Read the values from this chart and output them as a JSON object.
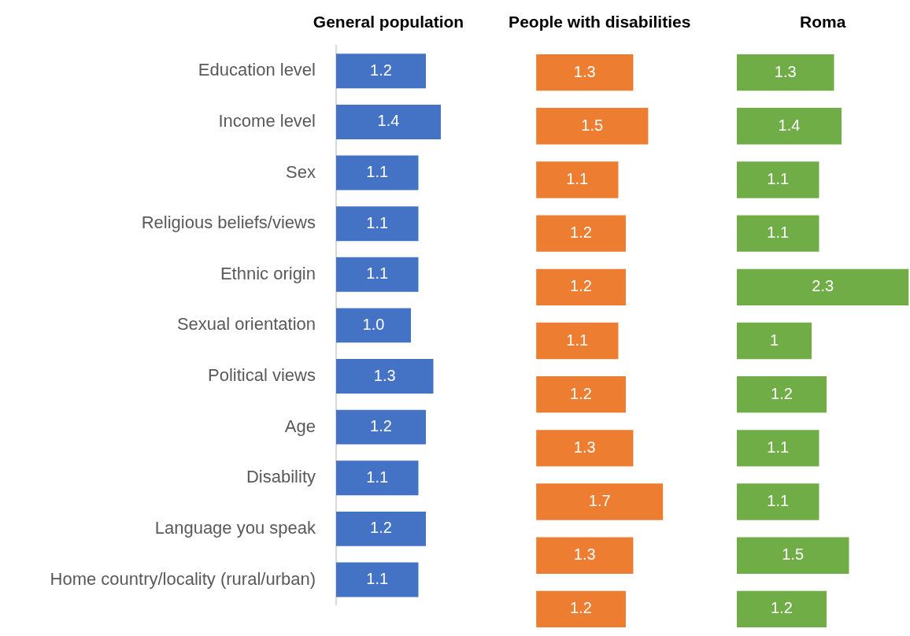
{
  "chart_data": [
    {
      "type": "bar",
      "orientation": "horizontal",
      "title": "General population",
      "tick_labels": "y",
      "categories": [
        "Education level",
        "Income level",
        "Sex",
        "Religious beliefs/views",
        "Ethnic origin",
        "Sexual orientation",
        "Political views",
        "Age",
        "Disability",
        "Language you speak",
        "Home country/locality (rural/urban)"
      ],
      "values": [
        1.2,
        1.4,
        1.1,
        1.1,
        1.1,
        1.0,
        1.3,
        1.2,
        1.1,
        1.2,
        1.1
      ],
      "color": "#4472c4",
      "value_labels": [
        "1.2",
        "1.4",
        "1.1",
        "1.1",
        "1.1",
        "1.0",
        "1.3",
        "1.2",
        "1.1",
        "1.2",
        "1.1"
      ]
    },
    {
      "type": "bar",
      "orientation": "horizontal",
      "title": "People with disabilities",
      "tick_labels": false,
      "categories": [
        null,
        null,
        null,
        null,
        null,
        null,
        null,
        null,
        null,
        null,
        null
      ],
      "values": [
        1.3,
        1.5,
        1.1,
        1.2,
        1.2,
        1.1,
        1.2,
        1.3,
        1.7,
        1.3,
        1.2
      ],
      "color": "#ed7d31",
      "value_labels": [
        "1.3",
        "1.5",
        "1.1",
        "1.2",
        "1.2",
        "1.1",
        "1.2",
        "1.3",
        "1.7",
        "1.3",
        "1.2"
      ]
    },
    {
      "type": "bar",
      "orientation": "horizontal",
      "title": "Roma",
      "tick_labels": false,
      "categories": [
        null,
        null,
        null,
        null,
        null,
        null,
        null,
        null,
        null,
        null,
        null
      ],
      "values": [
        1.3,
        1.4,
        1.1,
        1.1,
        2.3,
        1,
        1.2,
        1.1,
        1.1,
        1.5,
        1.2
      ],
      "color": "#70ad47",
      "value_labels": [
        "1.3",
        "1.4",
        "1.1",
        "1.1",
        "2.3",
        "1",
        "1.2",
        "1.1",
        "1.1",
        "1.5",
        "1.2"
      ]
    }
  ]
}
